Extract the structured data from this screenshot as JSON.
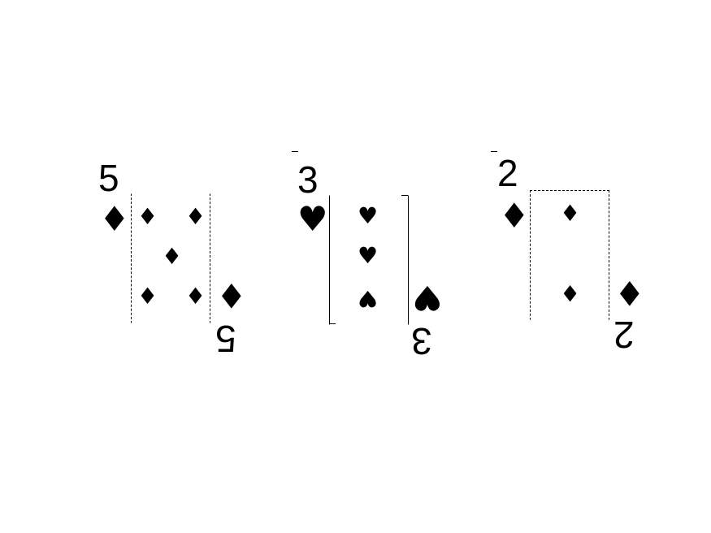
{
  "cards": [
    {
      "rank": "5",
      "suit": "diamond",
      "suit_glyph": "♦",
      "color": "#000000"
    },
    {
      "rank": "3",
      "suit": "heart",
      "suit_glyph": "♥",
      "color": "#000000"
    },
    {
      "rank": "2",
      "suit": "diamond",
      "suit_glyph": "♦",
      "color": "#000000"
    }
  ]
}
